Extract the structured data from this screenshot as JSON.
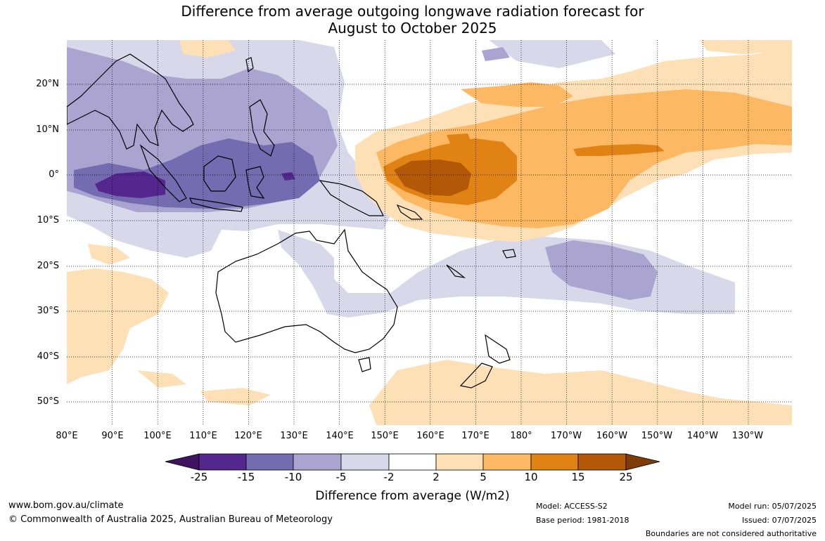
{
  "title_line1": "Difference from average outgoing longwave radiation forecast for",
  "title_line2": "August to October 2025",
  "lat_labels": [
    "20°N",
    "10°N",
    "0°",
    "10°S",
    "20°S",
    "30°S",
    "40°S",
    "50°S"
  ],
  "lon_labels": [
    "80°E",
    "90°E",
    "100°E",
    "110°E",
    "120°E",
    "130°E",
    "140°E",
    "150°E",
    "160°E",
    "170°E",
    "180°",
    "170°W",
    "160°W",
    "150°W",
    "140°W",
    "130°W"
  ],
  "colorbar": {
    "ticks": [
      "-25",
      "-15",
      "-10",
      "-5",
      "-2",
      "2",
      "5",
      "10",
      "15",
      "25"
    ],
    "colors": [
      "#3f1360",
      "#54278f",
      "#756bb1",
      "#aba3d0",
      "#d9d8ea",
      "#ffffff",
      "#fee0b6",
      "#fdb863",
      "#e08214",
      "#b35806",
      "#7f3b08"
    ],
    "label": "Difference from average (W/m2)"
  },
  "footer": {
    "url": "www.bom.gov.au/climate",
    "copyright": "© Commonwealth of Australia 2025, Australian Bureau of Meteorology",
    "model": "Model: ACCESS-S2",
    "base_period": "Base period: 1981-2018",
    "model_run": "Model run: 05/07/2025",
    "issued": "Issued: 07/07/2025",
    "disclaimer": "Boundaries are not considered authoritative"
  }
}
